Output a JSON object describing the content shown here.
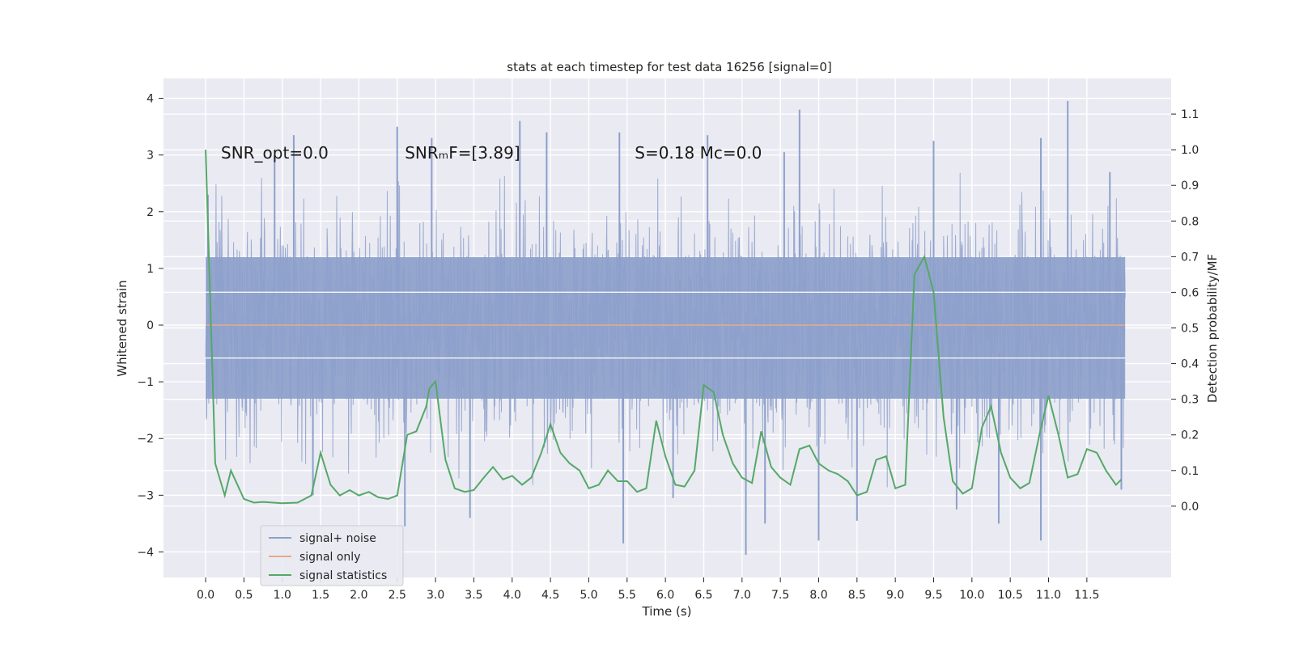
{
  "chart_data": {
    "type": "line",
    "title": "stats at each timestep for test data 16256 [signal=0]",
    "xlabel": "Time (s)",
    "ylabel_left": "Whitened strain",
    "ylabel_right": "Detection probability/MF",
    "xlim": [
      -0.55,
      12.6
    ],
    "ylim_left": [
      -4.45,
      4.35
    ],
    "ylim_right": [
      -0.2,
      1.2
    ],
    "x_ticks": [
      0.0,
      0.5,
      1.0,
      1.5,
      2.0,
      2.5,
      3.0,
      3.5,
      4.0,
      4.5,
      5.0,
      5.5,
      6.0,
      6.5,
      7.0,
      7.5,
      8.0,
      8.5,
      9.0,
      9.5,
      10.0,
      10.5,
      11.0,
      11.5
    ],
    "x_tick_labels": [
      "0.0",
      "0.5",
      "1.0",
      "1.5",
      "2.0",
      "2.5",
      "3.0",
      "3.5",
      "4.0",
      "4.5",
      "5.0",
      "5.5",
      "6.0",
      "6.5",
      "7.0",
      "7.5",
      "8.0",
      "8.5",
      "9.0",
      "9.5",
      "10.0",
      "10.5",
      "11.0",
      "11.5"
    ],
    "y_left_ticks": [
      -4,
      -3,
      -2,
      -1,
      0,
      1,
      2,
      3,
      4
    ],
    "y_left_tick_labels": [
      "−4",
      "−3",
      "−2",
      "−1",
      "0",
      "1",
      "2",
      "3",
      "4"
    ],
    "y_right_ticks": [
      0.0,
      0.1,
      0.2,
      0.3,
      0.4,
      0.5,
      0.6,
      0.7,
      0.8,
      0.9,
      1.0,
      1.1
    ],
    "y_right_tick_labels": [
      "0.0",
      "0.1",
      "0.2",
      "0.3",
      "0.4",
      "0.5",
      "0.6",
      "0.7",
      "0.8",
      "0.9",
      "1.0",
      "1.1"
    ],
    "grid": true,
    "legend_position": "lower-left",
    "annotations": [
      {
        "x": 0.2,
        "y": 3.05,
        "text": "SNR_opt=0.0"
      },
      {
        "x": 2.6,
        "y": 3.05,
        "text": "SNRₘF=[3.89]"
      },
      {
        "x": 5.6,
        "y": 3.05,
        "text": "S=0.18   Mc=0.0"
      }
    ],
    "series": [
      {
        "name": "signal+ noise",
        "axis": "left",
        "color": "#8da0cb",
        "kind": "noise",
        "x_range": [
          0.0,
          12.0
        ],
        "envelope_core": [
          -1.3,
          1.2
        ],
        "peak_spikes": [
          {
            "x": 0.03,
            "y": 2.3
          },
          {
            "x": 0.9,
            "y": 3.0
          },
          {
            "x": 1.15,
            "y": 3.35
          },
          {
            "x": 2.5,
            "y": 3.5
          },
          {
            "x": 2.95,
            "y": 3.3
          },
          {
            "x": 4.1,
            "y": 3.6
          },
          {
            "x": 4.45,
            "y": 3.4
          },
          {
            "x": 5.4,
            "y": 3.4
          },
          {
            "x": 6.55,
            "y": 3.35
          },
          {
            "x": 7.75,
            "y": 3.8
          },
          {
            "x": 7.55,
            "y": 3.05
          },
          {
            "x": 9.5,
            "y": 3.25
          },
          {
            "x": 10.9,
            "y": 3.3
          },
          {
            "x": 11.25,
            "y": 3.95
          },
          {
            "x": 11.8,
            "y": 2.7
          }
        ],
        "trough_spikes": [
          {
            "x": 1.4,
            "y": -3.0
          },
          {
            "x": 2.6,
            "y": -3.55
          },
          {
            "x": 3.45,
            "y": -3.4
          },
          {
            "x": 5.45,
            "y": -3.85
          },
          {
            "x": 6.1,
            "y": -3.05
          },
          {
            "x": 7.05,
            "y": -4.05
          },
          {
            "x": 7.3,
            "y": -3.5
          },
          {
            "x": 8.0,
            "y": -3.8
          },
          {
            "x": 8.5,
            "y": -3.45
          },
          {
            "x": 9.8,
            "y": -3.25
          },
          {
            "x": 10.35,
            "y": -3.5
          },
          {
            "x": 10.9,
            "y": -3.8
          },
          {
            "x": 11.95,
            "y": -2.9
          }
        ]
      },
      {
        "name": "signal only",
        "axis": "left",
        "color": "#e8a98c",
        "x": [
          0.0,
          12.0
        ],
        "y": [
          0.0,
          0.0
        ]
      },
      {
        "name": "signal statistics",
        "axis": "right",
        "color": "#55a868",
        "x": [
          0.0,
          0.125,
          0.25,
          0.33,
          0.5,
          0.63,
          0.75,
          1.0,
          1.2,
          1.38,
          1.5,
          1.63,
          1.75,
          1.88,
          2.0,
          2.13,
          2.25,
          2.38,
          2.5,
          2.63,
          2.75,
          2.88,
          2.92,
          3.0,
          3.13,
          3.25,
          3.38,
          3.5,
          3.63,
          3.75,
          3.88,
          4.0,
          4.13,
          4.25,
          4.38,
          4.5,
          4.63,
          4.75,
          4.88,
          5.0,
          5.13,
          5.25,
          5.38,
          5.5,
          5.63,
          5.75,
          5.88,
          6.0,
          6.13,
          6.25,
          6.38,
          6.5,
          6.63,
          6.75,
          6.88,
          7.0,
          7.13,
          7.25,
          7.38,
          7.5,
          7.63,
          7.75,
          7.88,
          8.0,
          8.13,
          8.25,
          8.38,
          8.5,
          8.63,
          8.75,
          8.88,
          9.0,
          9.13,
          9.25,
          9.38,
          9.5,
          9.63,
          9.75,
          9.88,
          10.0,
          10.13,
          10.25,
          10.38,
          10.5,
          10.63,
          10.75,
          10.88,
          11.0,
          11.13,
          11.25,
          11.38,
          11.5,
          11.63,
          11.75,
          11.88,
          11.95
        ],
        "y": [
          1.0,
          0.12,
          0.03,
          0.1,
          0.02,
          0.01,
          0.012,
          0.008,
          0.01,
          0.03,
          0.15,
          0.06,
          0.03,
          0.045,
          0.03,
          0.04,
          0.025,
          0.02,
          0.03,
          0.2,
          0.21,
          0.28,
          0.33,
          0.35,
          0.13,
          0.05,
          0.04,
          0.045,
          0.08,
          0.11,
          0.075,
          0.085,
          0.06,
          0.08,
          0.15,
          0.23,
          0.15,
          0.12,
          0.1,
          0.05,
          0.06,
          0.1,
          0.07,
          0.07,
          0.04,
          0.05,
          0.24,
          0.14,
          0.06,
          0.055,
          0.1,
          0.34,
          0.32,
          0.2,
          0.12,
          0.08,
          0.065,
          0.21,
          0.11,
          0.08,
          0.06,
          0.16,
          0.17,
          0.12,
          0.1,
          0.09,
          0.07,
          0.03,
          0.04,
          0.13,
          0.14,
          0.05,
          0.06,
          0.65,
          0.7,
          0.6,
          0.25,
          0.07,
          0.035,
          0.05,
          0.22,
          0.28,
          0.15,
          0.08,
          0.05,
          0.065,
          0.2,
          0.31,
          0.2,
          0.08,
          0.09,
          0.16,
          0.15,
          0.1,
          0.06,
          0.075
        ]
      }
    ]
  }
}
